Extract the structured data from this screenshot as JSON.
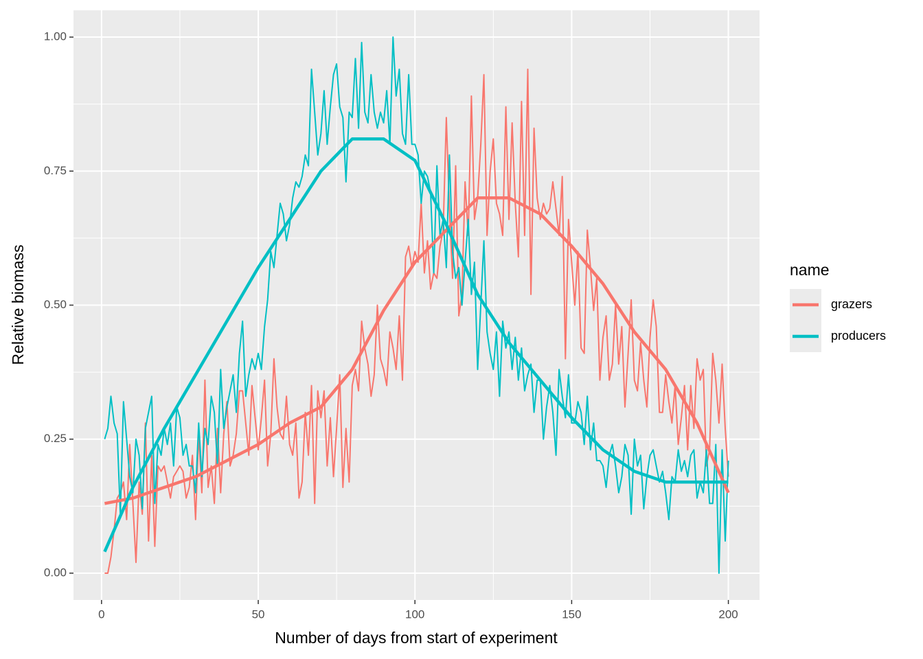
{
  "chart_data": {
    "type": "line",
    "x_label": "Number of days from start of experiment",
    "y_label": "Relative biomass",
    "legend_title": "name",
    "legend": "right",
    "grid": true,
    "xlim": [
      -8.95,
      209.95
    ],
    "xticks": [
      0,
      50,
      100,
      150,
      200
    ],
    "ylim": [
      -0.05,
      1.05
    ],
    "yticks": [
      {
        "value": 0,
        "label": "0.00"
      },
      {
        "value": 0.25,
        "label": "0.25"
      },
      {
        "value": 0.5,
        "label": "0.50"
      },
      {
        "value": 0.75,
        "label": "0.75"
      },
      {
        "value": 1,
        "label": "1.00"
      }
    ],
    "x": [
      1,
      2,
      3,
      4,
      5,
      6,
      7,
      8,
      9,
      10,
      11,
      12,
      13,
      14,
      15,
      16,
      17,
      18,
      19,
      20,
      21,
      22,
      23,
      24,
      25,
      26,
      27,
      28,
      29,
      30,
      31,
      32,
      33,
      34,
      35,
      36,
      37,
      38,
      39,
      40,
      41,
      42,
      43,
      44,
      45,
      46,
      47,
      48,
      49,
      50,
      51,
      52,
      53,
      54,
      55,
      56,
      57,
      58,
      59,
      60,
      61,
      62,
      63,
      64,
      65,
      66,
      67,
      68,
      69,
      70,
      71,
      72,
      73,
      74,
      75,
      76,
      77,
      78,
      79,
      80,
      81,
      82,
      83,
      84,
      85,
      86,
      87,
      88,
      89,
      90,
      91,
      92,
      93,
      94,
      95,
      96,
      97,
      98,
      99,
      100,
      101,
      102,
      103,
      104,
      105,
      106,
      107,
      108,
      109,
      110,
      111,
      112,
      113,
      114,
      115,
      116,
      117,
      118,
      119,
      120,
      121,
      122,
      123,
      124,
      125,
      126,
      127,
      128,
      129,
      130,
      131,
      132,
      133,
      134,
      135,
      136,
      137,
      138,
      139,
      140,
      141,
      142,
      143,
      144,
      145,
      146,
      147,
      148,
      149,
      150,
      151,
      152,
      153,
      154,
      155,
      156,
      157,
      158,
      159,
      160,
      161,
      162,
      163,
      164,
      165,
      166,
      167,
      168,
      169,
      170,
      171,
      172,
      173,
      174,
      175,
      176,
      177,
      178,
      179,
      180,
      181,
      182,
      183,
      184,
      185,
      186,
      187,
      188,
      189,
      190,
      191,
      192,
      193,
      194,
      195,
      196,
      197,
      198,
      199,
      200
    ],
    "series": [
      {
        "name": "grazers",
        "color": "#f8766d",
        "values": [
          0.0,
          0.0,
          0.03,
          0.08,
          0.14,
          0.15,
          0.17,
          0.1,
          0.24,
          0.13,
          0.02,
          0.17,
          0.11,
          0.28,
          0.06,
          0.22,
          0.05,
          0.2,
          0.19,
          0.2,
          0.17,
          0.14,
          0.18,
          0.19,
          0.2,
          0.19,
          0.14,
          0.16,
          0.22,
          0.1,
          0.26,
          0.15,
          0.36,
          0.16,
          0.2,
          0.13,
          0.27,
          0.15,
          0.26,
          0.32,
          0.2,
          0.22,
          0.26,
          0.34,
          0.34,
          0.28,
          0.22,
          0.35,
          0.29,
          0.23,
          0.29,
          0.36,
          0.2,
          0.26,
          0.4,
          0.31,
          0.26,
          0.25,
          0.33,
          0.24,
          0.22,
          0.28,
          0.14,
          0.17,
          0.3,
          0.22,
          0.35,
          0.13,
          0.34,
          0.29,
          0.34,
          0.2,
          0.29,
          0.18,
          0.27,
          0.37,
          0.16,
          0.27,
          0.17,
          0.35,
          0.38,
          0.34,
          0.47,
          0.42,
          0.39,
          0.33,
          0.37,
          0.5,
          0.4,
          0.38,
          0.35,
          0.45,
          0.42,
          0.38,
          0.48,
          0.36,
          0.59,
          0.61,
          0.57,
          0.6,
          0.58,
          0.69,
          0.56,
          0.62,
          0.53,
          0.56,
          0.55,
          0.61,
          0.64,
          0.85,
          0.68,
          0.55,
          0.76,
          0.48,
          0.52,
          0.73,
          0.63,
          0.89,
          0.66,
          0.7,
          0.8,
          0.93,
          0.63,
          0.75,
          0.81,
          0.69,
          0.67,
          0.63,
          0.87,
          0.66,
          0.84,
          0.69,
          0.59,
          0.88,
          0.63,
          0.94,
          0.52,
          0.83,
          0.7,
          0.66,
          0.69,
          0.67,
          0.68,
          0.73,
          0.68,
          0.63,
          0.74,
          0.4,
          0.66,
          0.58,
          0.5,
          0.6,
          0.42,
          0.41,
          0.64,
          0.57,
          0.49,
          0.55,
          0.36,
          0.44,
          0.48,
          0.36,
          0.39,
          0.5,
          0.39,
          0.46,
          0.31,
          0.41,
          0.51,
          0.36,
          0.34,
          0.43,
          0.36,
          0.31,
          0.44,
          0.51,
          0.46,
          0.3,
          0.3,
          0.37,
          0.32,
          0.28,
          0.35,
          0.24,
          0.29,
          0.35,
          0.23,
          0.35,
          0.27,
          0.4,
          0.36,
          0.38,
          0.2,
          0.23,
          0.41,
          0.36,
          0.28,
          0.39,
          0.27,
          0.18
        ],
        "smooth": {
          "x": [
            1,
            10,
            20,
            30,
            40,
            50,
            60,
            70,
            80,
            90,
            100,
            110,
            120,
            130,
            140,
            150,
            160,
            170,
            180,
            190,
            200
          ],
          "values": [
            0.13,
            0.14,
            0.16,
            0.18,
            0.21,
            0.24,
            0.28,
            0.31,
            0.38,
            0.49,
            0.58,
            0.64,
            0.7,
            0.7,
            0.67,
            0.61,
            0.54,
            0.45,
            0.38,
            0.28,
            0.15
          ]
        }
      },
      {
        "name": "producers",
        "color": "#00bfc4",
        "values": [
          0.25,
          0.27,
          0.33,
          0.28,
          0.26,
          0.11,
          0.32,
          0.25,
          0.18,
          0.15,
          0.25,
          0.22,
          0.12,
          0.27,
          0.3,
          0.33,
          0.13,
          0.24,
          0.22,
          0.27,
          0.24,
          0.28,
          0.2,
          0.31,
          0.29,
          0.22,
          0.24,
          0.2,
          0.2,
          0.15,
          0.28,
          0.18,
          0.27,
          0.24,
          0.33,
          0.3,
          0.2,
          0.38,
          0.27,
          0.31,
          0.34,
          0.37,
          0.3,
          0.41,
          0.47,
          0.33,
          0.37,
          0.4,
          0.38,
          0.41,
          0.38,
          0.46,
          0.51,
          0.6,
          0.57,
          0.63,
          0.69,
          0.67,
          0.62,
          0.65,
          0.7,
          0.73,
          0.72,
          0.74,
          0.78,
          0.76,
          0.94,
          0.86,
          0.78,
          0.82,
          0.9,
          0.8,
          0.87,
          0.93,
          0.95,
          0.87,
          0.85,
          0.73,
          0.86,
          0.85,
          0.96,
          0.83,
          0.99,
          0.86,
          0.84,
          0.93,
          0.86,
          0.83,
          0.86,
          0.84,
          0.9,
          0.8,
          1.0,
          0.89,
          0.94,
          0.82,
          0.8,
          0.93,
          0.8,
          0.8,
          0.78,
          0.69,
          0.75,
          0.74,
          0.71,
          0.56,
          0.76,
          0.63,
          0.66,
          0.57,
          0.78,
          0.6,
          0.55,
          0.57,
          0.5,
          0.58,
          0.66,
          0.52,
          0.58,
          0.38,
          0.5,
          0.62,
          0.45,
          0.41,
          0.38,
          0.45,
          0.33,
          0.47,
          0.42,
          0.45,
          0.38,
          0.44,
          0.36,
          0.42,
          0.34,
          0.37,
          0.39,
          0.3,
          0.36,
          0.36,
          0.25,
          0.31,
          0.35,
          0.3,
          0.22,
          0.38,
          0.33,
          0.29,
          0.37,
          0.28,
          0.28,
          0.32,
          0.3,
          0.24,
          0.33,
          0.23,
          0.28,
          0.21,
          0.21,
          0.2,
          0.16,
          0.22,
          0.24,
          0.2,
          0.15,
          0.18,
          0.24,
          0.22,
          0.11,
          0.25,
          0.2,
          0.22,
          0.12,
          0.18,
          0.22,
          0.23,
          0.2,
          0.17,
          0.19,
          0.15,
          0.1,
          0.18,
          0.17,
          0.23,
          0.19,
          0.21,
          0.18,
          0.22,
          0.23,
          0.14,
          0.17,
          0.15,
          0.23,
          0.13,
          0.13,
          0.24,
          0.0,
          0.23,
          0.06,
          0.21
        ],
        "smooth": {
          "x": [
            1,
            10,
            20,
            30,
            40,
            50,
            60,
            70,
            80,
            90,
            100,
            110,
            120,
            130,
            140,
            150,
            160,
            170,
            180,
            190,
            200
          ],
          "values": [
            0.04,
            0.16,
            0.27,
            0.37,
            0.47,
            0.57,
            0.66,
            0.75,
            0.81,
            0.81,
            0.77,
            0.65,
            0.52,
            0.43,
            0.36,
            0.29,
            0.23,
            0.19,
            0.17,
            0.17,
            0.17
          ]
        }
      }
    ]
  }
}
